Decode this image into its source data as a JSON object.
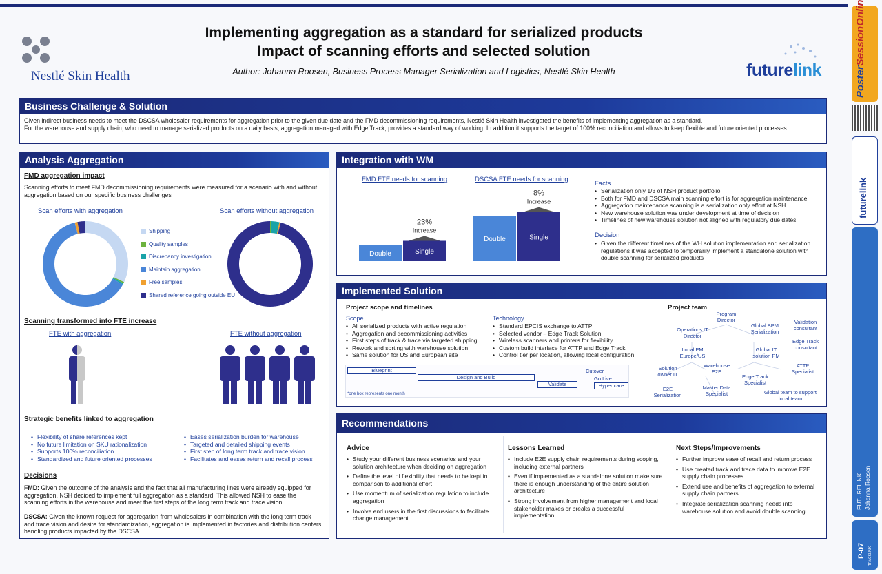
{
  "header": {
    "title_line1": "Implementing aggregation as a standard for serialized products",
    "title_line2": "Impact of scanning efforts and selected solution",
    "author": "Author: Johanna Roosen, Business Process Manager Serialization and Logistics, Nestlé Skin Health",
    "logo_left": "Nestlé Skin Health",
    "logo_right_a": "future",
    "logo_right_b": "link"
  },
  "business": {
    "heading": "Business Challenge & Solution",
    "text1": "Given indirect business needs to meet the DSCSA wholesaler requirements for aggregation prior to the given due date and the FMD decommissioning requirements, Nestlé Skin Health investigated the benefits of implementing aggregation as a standard.",
    "text2": "For the warehouse and supply chain, who need to manage serialized products on a daily basis, aggregation managed with Edge Track, provides a standard way of working. In addition it supports the target of 100% reconciliation and allows to keep flexible and future oriented processes."
  },
  "analysis": {
    "heading": "Analysis Aggregation",
    "fmd_title": "FMD aggregation impact",
    "fmd_text": "Scanning efforts to meet FMD decommissioning requirements were measured for a scenario with and without aggregation based on our specific business challenges",
    "donut1_label": "Scan efforts with aggregation",
    "donut2_label": "Scan efforts without aggregation",
    "legend": [
      {
        "label": "Shipping",
        "color": "#c5d8f2"
      },
      {
        "label": "Quality samples",
        "color": "#6db33f"
      },
      {
        "label": "Discrepancy investigation",
        "color": "#1aa3a8"
      },
      {
        "label": "Maintain aggregation",
        "color": "#4a86d8"
      },
      {
        "label": "Free samples",
        "color": "#f0a030"
      },
      {
        "label": "Shared reference going outside EU",
        "color": "#2e2f8c"
      }
    ],
    "fte_title": "Scanning transformed into FTE increase",
    "fte_with": "FTE with aggregation",
    "fte_without": "FTE without aggregation",
    "strategic_title": "Strategic benefits linked to aggregation",
    "strategic_left": [
      "Flexibility of share references kept",
      "No future limitation on SKU rationalization",
      "Supports 100% reconciliation",
      "Standardized and future oriented processes"
    ],
    "strategic_right": [
      "Eases serialization burden for warehouse",
      "Targeted and detailed shipping events",
      "First step of long term track and trace vision",
      "Facilitates and eases return and recall process"
    ],
    "decisions_title": "Decisions",
    "fmd_label": "FMD:",
    "fmd_decision": "Given the outcome of the analysis and the fact that all manufacturing lines were already equipped for aggregation, NSH decided to implement full aggregation as a standard. This allowed NSH to ease the scanning efforts in the warehouse and meet the first steps of the long term track and trace vision.",
    "dscsa_label": "DSCSA:",
    "dscsa_decision": "Given the known request for aggregation from wholesalers in combination with the long term track and trace vision and desire for standardization, aggregation is implemented in factories and distribution centers handling products impacted by the DSCSA."
  },
  "chart_data": [
    {
      "type": "pie",
      "title": "Scan efforts with aggregation",
      "categories": [
        "Shipping",
        "Quality samples",
        "Discrepancy investigation",
        "Maintain aggregation",
        "Free samples",
        "Shared reference going outside EU"
      ],
      "values": [
        32,
        0.5,
        0.5,
        63,
        1,
        3
      ]
    },
    {
      "type": "pie",
      "title": "Scan efforts without aggregation",
      "categories": [
        "Shipping",
        "Quality samples",
        "Discrepancy investigation",
        "Maintain aggregation",
        "Free samples",
        "Shared reference going outside EU"
      ],
      "values": [
        0,
        0.5,
        3,
        0,
        0.5,
        96
      ]
    },
    {
      "type": "bar",
      "title": "FMD FTE needs for scanning",
      "categories": [
        "Double",
        "Single"
      ],
      "values": [
        100,
        123
      ],
      "annotation": "23%",
      "annotation_sub": "Increase"
    },
    {
      "type": "bar",
      "title": "DSCSA FTE needs for scanning",
      "categories": [
        "Double",
        "Single"
      ],
      "values": [
        100,
        108
      ],
      "annotation": "8%",
      "annotation_sub": "Increase"
    }
  ],
  "integration": {
    "heading": "Integration with WM",
    "facts_title": "Facts",
    "facts": [
      "Serialization only 1/3 of NSH product portfolio",
      "Both for FMD and DSCSA main scanning effort is for aggregation maintenance",
      "Aggregation maintenance scanning is a serialization only effort at NSH",
      "New warehouse solution was under development at time of decision",
      "Timelines of new warehouse solution not aligned with regulatory due dates"
    ],
    "decision_title": "Decision",
    "decision": [
      "Given the different timelines of the WH solution implementation and serialization regulations it was accepted to temporarily implement a standalone solution with double scanning for serialized products"
    ]
  },
  "implemented": {
    "heading": "Implemented Solution",
    "scope_title": "Project scope and timelines",
    "scope_label": "Scope",
    "scope": [
      "All serialized products with active regulation",
      "Aggregation and decommissioning activities",
      "First steps of track & trace via targeted shipping",
      "Rework and sorting with warehouse solution",
      "Same solution for US and European site"
    ],
    "tech_label": "Technology",
    "tech": [
      "Standard EPCIS exchange to ATTP",
      "Selected vendor – Edge Track Solution",
      "Wireless scanners and printers for flexibility",
      "Custom build interface for ATTP and Edge Track",
      "Control tier per location, allowing local configuration"
    ],
    "timeline": [
      "Blueprint",
      "Design and Build",
      "Validate",
      "Cutover",
      "Go Live",
      "Hyper care"
    ],
    "timeline_note": "*one box represents one month",
    "team_title": "Project team",
    "team": [
      "Program Director",
      "Operations IT Director",
      "Global BPM Serialization",
      "Validation consultant",
      "Edge Track consultant",
      "Local PM Europe/US",
      "Global IT solution PM",
      "Solution owner IT",
      "Warehouse E2E",
      "ATTP Specialist",
      "Edge Track Specialist",
      "E2E Serialization",
      "Master Data Specialist",
      "Global team to support local team"
    ]
  },
  "recommendations": {
    "heading": "Recommendations",
    "advice_title": "Advice",
    "advice": [
      "Study your different business scenarios and your solution architecture when deciding on aggregation",
      "Define the level of flexibility that needs to be kept in comparison to additional effort",
      "Use momentum of serialization regulation to include aggregation",
      "Involve end users in the first discussions to facilitate change management"
    ],
    "lessons_title": "Lessons Learned",
    "lessons": [
      "Include E2E supply chain requirements during scoping, including external partners",
      "Even if implemented as a standalone solution make sure there is enough understanding of the entire solution architecture",
      "Strong involvement from higher management and local stakeholder makes or breaks a successful implementation"
    ],
    "next_title": "Next Steps/Improvements",
    "next": [
      "Further improve ease of recall and return process",
      "Use created track and trace data to improve E2E supply chain processes",
      "Extend use and benefits of aggregation to external supply chain partners",
      "Integrate serialization scanning needs into warehouse solution and avoid double scanning"
    ]
  },
  "sidebar": {
    "poster_a": "Poster",
    "poster_b": "SessionOnline",
    "brand": "futurelink",
    "vertical1": "FUTURELINK",
    "vertical2": "Johanna Roosen",
    "page": "P-07",
    "bottom": "TRACKLINK"
  }
}
